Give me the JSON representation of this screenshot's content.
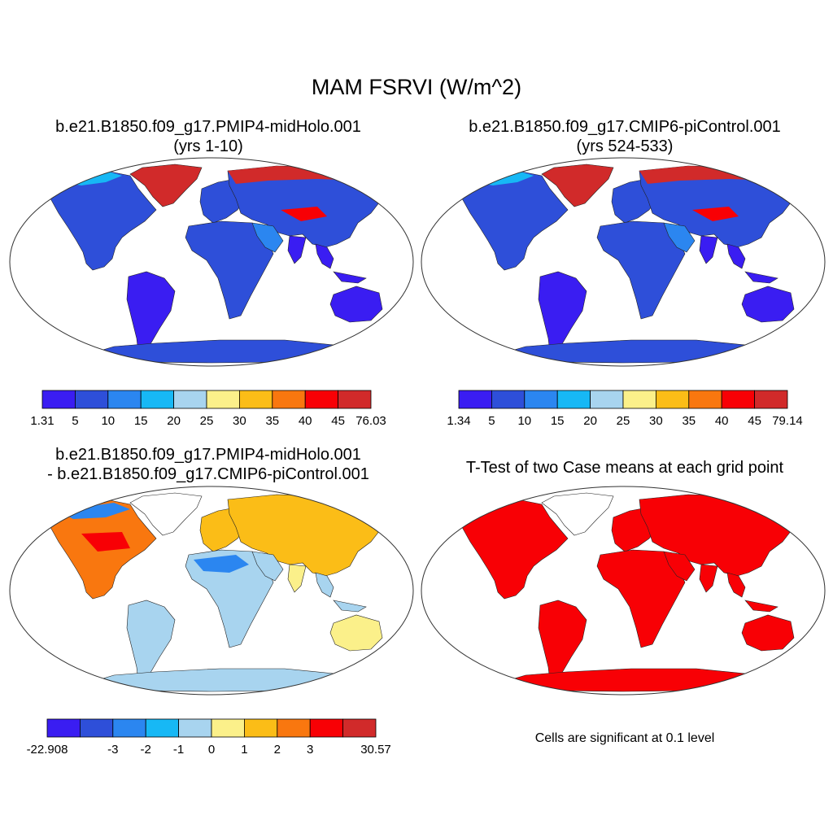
{
  "title": "MAM FSRVI (W/m^2)",
  "panels": [
    {
      "line1": "b.e21.B1850.f09_g17.PMIP4-midHolo.001",
      "line2": "(yrs 1-10)"
    },
    {
      "line1": "b.e21.B1850.f09_g17.CMIP6-piControl.001",
      "line2": "(yrs 524-533)"
    },
    {
      "line1": "b.e21.B1850.f09_g17.PMIP4-midHolo.001",
      "line2": "- b.e21.B1850.f09_g17.CMIP6-piControl.001"
    },
    {
      "line1": "T-Test of two Case means at each grid point"
    }
  ],
  "colorbars": [
    {
      "colors": [
        "#3a1df2",
        "#2e4fd9",
        "#2b86f0",
        "#17b8f5",
        "#a8d4ef",
        "#fbf08a",
        "#fbbd17",
        "#f9770f",
        "#f80005",
        "#d12a2a"
      ],
      "labels": [
        "1.31",
        "5",
        "10",
        "15",
        "20",
        "25",
        "30",
        "35",
        "40",
        "45",
        "76.03"
      ]
    },
    {
      "colors": [
        "#3a1df2",
        "#2e4fd9",
        "#2b86f0",
        "#17b8f5",
        "#a8d4ef",
        "#fbf08a",
        "#fbbd17",
        "#f9770f",
        "#f80005",
        "#d12a2a"
      ],
      "labels": [
        "1.34",
        "5",
        "10",
        "15",
        "20",
        "25",
        "30",
        "35",
        "40",
        "45",
        "79.14"
      ]
    },
    {
      "colors": [
        "#3a1df2",
        "#2e4fd9",
        "#2b86f0",
        "#17b8f5",
        "#a8d4ef",
        "#fbf08a",
        "#fbbd17",
        "#f9770f",
        "#f80005",
        "#d12a2a"
      ],
      "labels": [
        "-22.908",
        "",
        "-3",
        "-2",
        "-1",
        "0",
        "1",
        "2",
        "3",
        "",
        "30.57"
      ]
    }
  ],
  "significance_note": "Cells are significant at 0.1 level",
  "significance_color": "#f80005"
}
